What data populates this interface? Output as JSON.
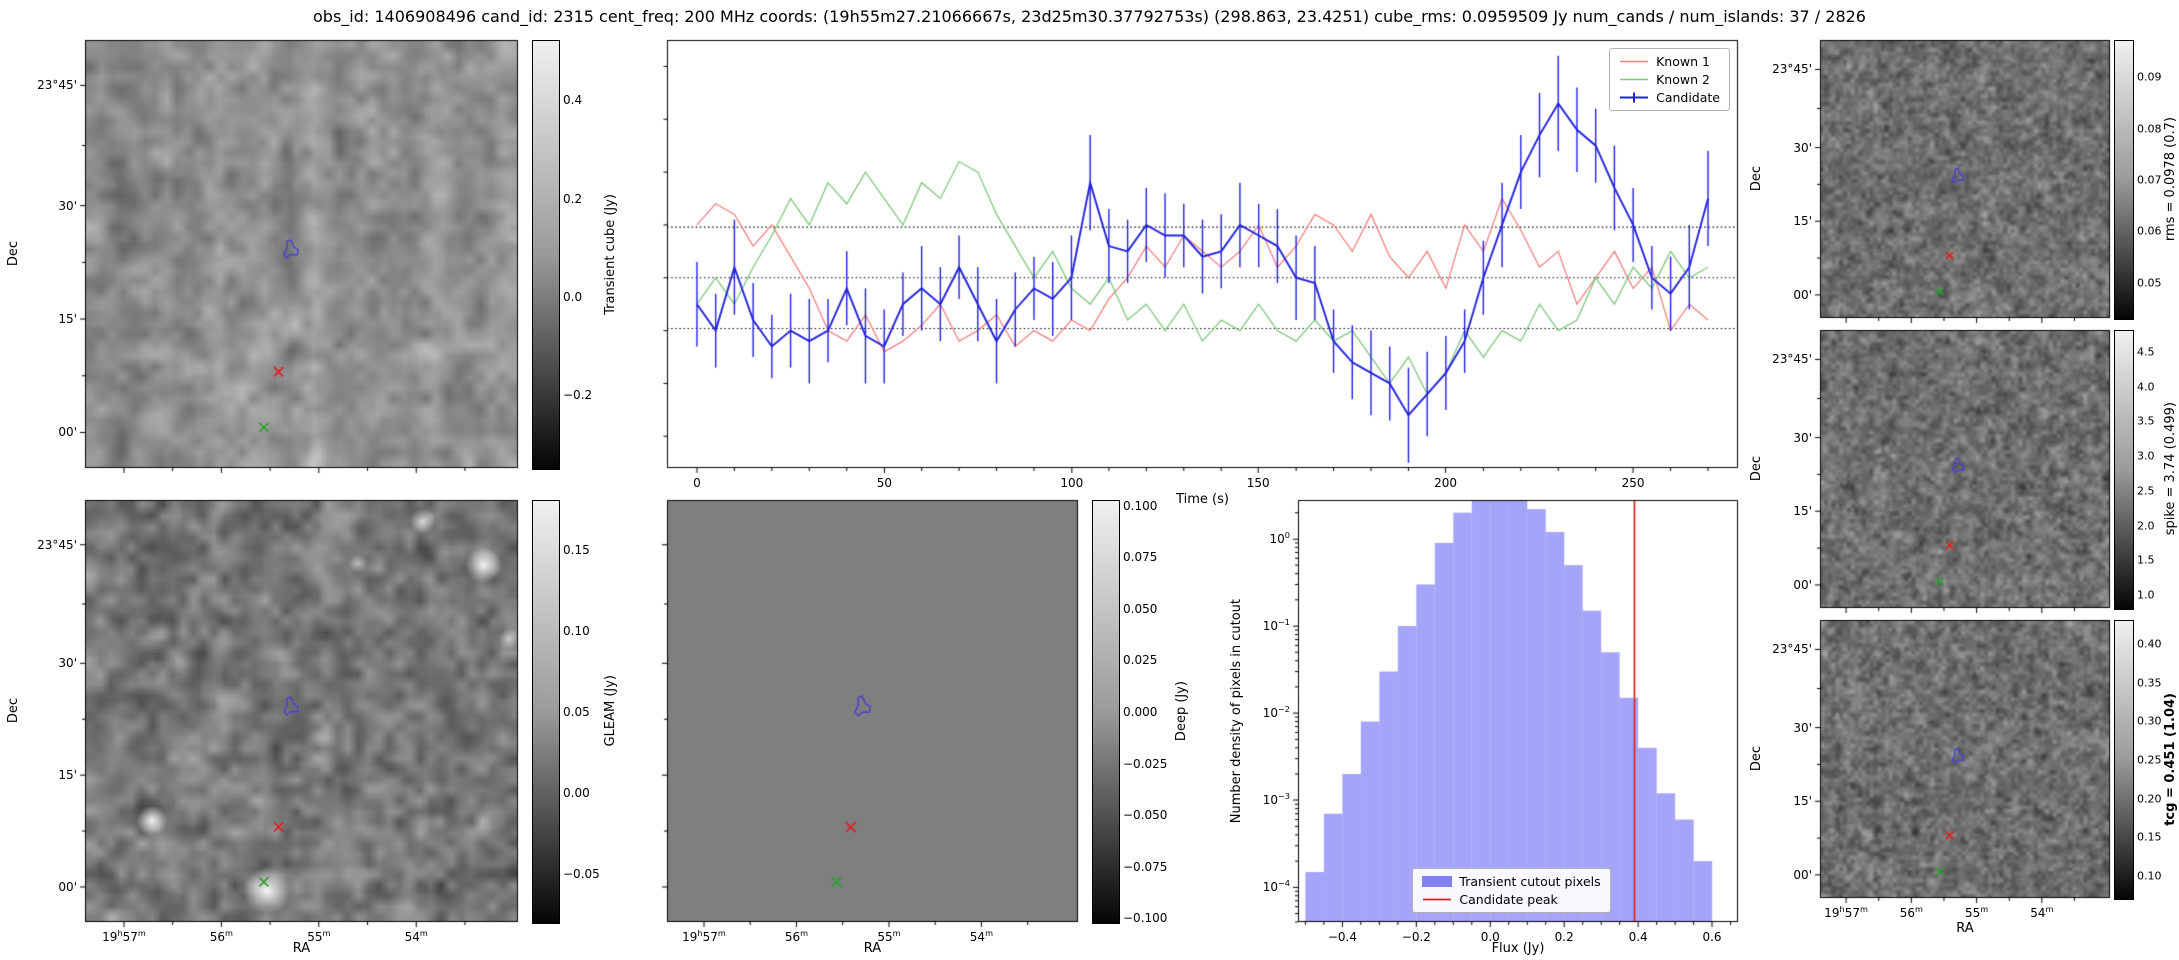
{
  "title": "obs_id: 1406908496 cand_id: 2315 cent_freq: 200 MHz coords: (19h55m27.21066667s, 23d25m30.37792753s) (298.863, 23.4251) cube_rms: 0.0959509 Jy num_cands / num_islands: 37 / 2826",
  "axis_labels": {
    "dec": "Dec",
    "ra": "RA"
  },
  "colors": {
    "known1": "#f08080",
    "known2": "#7ec77e",
    "candidate": "#2020dd",
    "hist_fill": "#8181f5",
    "candidate_peak": "#e02020",
    "marker_candidate": "#4d43cf",
    "marker_known1": "#e02020",
    "marker_known2": "#2ca02c"
  },
  "markers": {
    "candidate": {
      "shape": "contour",
      "color": "#4d43cf",
      "x": 0.475,
      "y": 0.49
    },
    "known1": {
      "shape": "x",
      "color": "#e02020",
      "x": 0.447,
      "y": 0.775
    },
    "known2": {
      "shape": "x",
      "color": "#2ca02c",
      "x": 0.413,
      "y": 0.905
    }
  },
  "ticks": {
    "dec": {
      "labels": [
        "23°45'",
        "30'",
        "15'",
        "00'"
      ],
      "pos": [
        0.106,
        0.387,
        0.652,
        0.917
      ]
    },
    "ra": {
      "labels": [
        "19h57m",
        "56m",
        "55m",
        "54m"
      ],
      "pos": [
        0.09,
        0.315,
        0.54,
        0.765
      ],
      "format": "ra"
    },
    "time": {
      "labels": [
        "0",
        "50",
        "100",
        "150",
        "200",
        "250"
      ],
      "pos": [
        0.028,
        0.203,
        0.378,
        0.552,
        0.727,
        0.902
      ]
    },
    "flux": {
      "labels": [
        "−0.4",
        "−0.2",
        "0.0",
        "0.2",
        "0.4",
        "0.6"
      ],
      "pos": [
        0.101,
        0.269,
        0.437,
        0.605,
        0.773,
        0.941
      ]
    },
    "logdensity": {
      "labels": [
        "0",
        "−1",
        "−2",
        "−3",
        "−4"
      ],
      "pos": [
        0.093,
        0.299,
        0.505,
        0.711,
        0.918
      ],
      "format": "log"
    },
    "cb_transient": {
      "labels": [
        "0.4",
        "0.2",
        "0.0",
        "−0.2"
      ],
      "pos": [
        0.138,
        0.368,
        0.598,
        0.828
      ]
    },
    "cb_gleam": {
      "labels": [
        "0.15",
        "0.10",
        "0.05",
        "0.00",
        "−0.05"
      ],
      "pos": [
        0.115,
        0.308,
        0.5,
        0.692,
        0.885
      ]
    },
    "cb_deep": {
      "labels": [
        "0.100",
        "0.075",
        "0.050",
        "0.025",
        "0.000",
        "−0.025",
        "−0.050",
        "−0.075",
        "−0.100"
      ],
      "pos": [
        0.012,
        0.132,
        0.255,
        0.377,
        0.5,
        0.623,
        0.745,
        0.868,
        0.988
      ]
    },
    "cb_rms": {
      "labels": [
        "0.09",
        "0.08",
        "0.07",
        "0.06",
        "0.05"
      ],
      "pos": [
        0.13,
        0.315,
        0.5,
        0.685,
        0.87
      ]
    },
    "cb_spike": {
      "labels": [
        "4.5",
        "4.0",
        "3.5",
        "3.0",
        "2.5",
        "2.0",
        "1.5",
        "1.0"
      ],
      "pos": [
        0.075,
        0.2,
        0.325,
        0.45,
        0.575,
        0.7,
        0.825,
        0.95
      ]
    },
    "cb_tcg": {
      "labels": [
        "0.40",
        "0.35",
        "0.30",
        "0.25",
        "0.20",
        "0.15",
        "0.10"
      ],
      "pos": [
        0.083,
        0.222,
        0.361,
        0.5,
        0.639,
        0.778,
        0.917
      ]
    }
  },
  "panels": {
    "transient_cube": {
      "colorbar_label": "Transient cube (Jy)",
      "colorbar_range": [
        -0.35,
        0.52
      ]
    },
    "gleam": {
      "colorbar_label": "GLEAM (Jy)",
      "colorbar_range": [
        -0.08,
        0.18
      ]
    },
    "deep": {
      "colorbar_label": "Deep (Jy)",
      "colorbar_range": [
        -0.102,
        0.102
      ]
    },
    "rms": {
      "colorbar_label": "rms = 0.0978 (0.7)",
      "colorbar_range": [
        0.043,
        0.097
      ]
    },
    "spike": {
      "colorbar_label": "spike = 3.74 (0.499)",
      "colorbar_range": [
        0.8,
        4.8
      ]
    },
    "tcg": {
      "colorbar_label": "tcg = 0.451 (1.04)",
      "colorbar_range": [
        0.07,
        0.43
      ],
      "bold": true
    }
  },
  "chart_data": [
    {
      "type": "line",
      "name": "lightcurves",
      "xlabel": "Time (s)",
      "ylabel": "",
      "xlim": [
        -8,
        278
      ],
      "ylim": [
        -0.36,
        0.45
      ],
      "legend_position": "upper right",
      "hlines": {
        "values": [
          0.0959509,
          0,
          -0.0959509
        ],
        "style": "dotted"
      },
      "x": [
        0,
        5,
        10,
        15,
        20,
        25,
        30,
        35,
        40,
        45,
        50,
        55,
        60,
        65,
        70,
        75,
        80,
        85,
        90,
        95,
        100,
        105,
        110,
        115,
        120,
        125,
        130,
        135,
        140,
        145,
        150,
        155,
        160,
        165,
        170,
        175,
        180,
        185,
        190,
        195,
        200,
        205,
        210,
        215,
        220,
        225,
        230,
        235,
        240,
        245,
        250,
        255,
        260,
        265,
        270
      ],
      "series": [
        {
          "name": "Known 1",
          "color": "#f08080",
          "values": [
            0.1,
            0.14,
            0.12,
            0.06,
            0.1,
            0.04,
            -0.02,
            -0.1,
            -0.12,
            -0.07,
            -0.14,
            -0.12,
            -0.09,
            -0.05,
            -0.12,
            -0.1,
            -0.07,
            -0.13,
            -0.1,
            -0.12,
            -0.08,
            -0.1,
            -0.04,
            0.0,
            0.06,
            0.02,
            0.08,
            0.05,
            0.02,
            0.05,
            0.1,
            0.02,
            0.06,
            0.12,
            0.1,
            0.05,
            0.12,
            0.04,
            0.0,
            0.05,
            -0.02,
            0.1,
            0.05,
            0.15,
            0.09,
            0.02,
            0.05,
            -0.05,
            0.0,
            0.05,
            -0.02,
            0.02,
            -0.1,
            -0.05,
            -0.08
          ]
        },
        {
          "name": "Known 2",
          "color": "#7ec77e",
          "values": [
            -0.05,
            0.0,
            -0.05,
            0.02,
            0.08,
            0.15,
            0.1,
            0.18,
            0.14,
            0.2,
            0.15,
            0.1,
            0.18,
            0.15,
            0.22,
            0.2,
            0.12,
            0.06,
            0.0,
            0.05,
            -0.02,
            -0.05,
            0.0,
            -0.08,
            -0.05,
            -0.1,
            -0.05,
            -0.12,
            -0.08,
            -0.1,
            -0.05,
            -0.1,
            -0.12,
            -0.08,
            -0.12,
            -0.1,
            -0.15,
            -0.2,
            -0.15,
            -0.22,
            -0.18,
            -0.1,
            -0.15,
            -0.1,
            -0.12,
            -0.05,
            -0.1,
            -0.08,
            0.0,
            -0.05,
            0.02,
            -0.02,
            0.05,
            0.0,
            0.02
          ]
        },
        {
          "name": "Candidate",
          "color": "#2020dd",
          "values": [
            -0.05,
            -0.1,
            0.02,
            -0.08,
            -0.13,
            -0.1,
            -0.12,
            -0.1,
            -0.02,
            -0.11,
            -0.13,
            -0.05,
            -0.02,
            -0.05,
            0.02,
            -0.05,
            -0.12,
            -0.06,
            -0.02,
            -0.04,
            0.0,
            0.18,
            0.06,
            0.05,
            0.1,
            0.08,
            0.08,
            0.04,
            0.05,
            0.1,
            0.08,
            0.06,
            0.0,
            -0.01,
            -0.12,
            -0.16,
            -0.18,
            -0.2,
            -0.26,
            -0.22,
            -0.18,
            -0.12,
            0.0,
            0.1,
            0.2,
            0.27,
            0.33,
            0.28,
            0.25,
            0.17,
            0.1,
            0.0,
            -0.03,
            0.02,
            0.15
          ],
          "yerr": [
            0.08,
            0.07,
            0.09,
            0.07,
            0.06,
            0.07,
            0.08,
            0.06,
            0.07,
            0.09,
            0.07,
            0.06,
            0.08,
            0.07,
            0.06,
            0.07,
            0.08,
            0.07,
            0.06,
            0.07,
            0.08,
            0.09,
            0.07,
            0.06,
            0.07,
            0.08,
            0.06,
            0.07,
            0.07,
            0.08,
            0.06,
            0.07,
            0.08,
            0.07,
            0.06,
            0.07,
            0.08,
            0.07,
            0.09,
            0.08,
            0.07,
            0.06,
            0.07,
            0.08,
            0.07,
            0.08,
            0.09,
            0.08,
            0.07,
            0.08,
            0.07,
            0.06,
            0.07,
            0.08,
            0.09
          ]
        }
      ]
    },
    {
      "type": "bar",
      "name": "flux-histogram",
      "xlabel": "Flux (Jy)",
      "ylabel": "Number density of pixels in cutout",
      "yscale": "log",
      "xlim": [
        -0.52,
        0.67
      ],
      "ylim": [
        4e-05,
        2.8
      ],
      "bin_start": -0.5,
      "bin_width": 0.05,
      "densities": [
        0.00015,
        0.0007,
        0.002,
        0.008,
        0.03,
        0.1,
        0.3,
        0.9,
        2.0,
        3.2,
        3.5,
        3.0,
        2.2,
        1.2,
        0.5,
        0.15,
        0.05,
        0.015,
        0.004,
        0.0012,
        0.0006,
        0.0002
      ],
      "candidate_peak_flux": 0.39,
      "legend": [
        "Transient cutout pixels",
        "Candidate peak"
      ],
      "legend_position": "lower center"
    },
    {
      "type": "heatmap",
      "name": "transient-cube-cutout",
      "colorbar_label": "Transient cube (Jy)",
      "colorbar_ticks": [
        0.4,
        0.2,
        0.0,
        -0.2
      ],
      "content": "correlated grayscale noise with candidate contour and known-source crosses"
    },
    {
      "type": "heatmap",
      "name": "gleam-cutout",
      "colorbar_label": "GLEAM (Jy)",
      "colorbar_ticks": [
        0.15,
        0.1,
        0.05,
        0.0,
        -0.05
      ],
      "content": "grayscale sky image with bright compact sources"
    },
    {
      "type": "heatmap",
      "name": "deep-cutout",
      "colorbar_label": "Deep (Jy)",
      "colorbar_ticks": [
        0.1,
        0.075,
        0.05,
        0.025,
        0.0,
        -0.025,
        -0.05,
        -0.075,
        -0.1
      ],
      "content": "flat mid-gray image with markers"
    },
    {
      "type": "heatmap",
      "name": "rms-cutout",
      "colorbar_label": "rms = 0.0978 (0.7)",
      "colorbar_ticks": [
        0.09,
        0.08,
        0.07,
        0.06,
        0.05
      ],
      "content": "fine grayscale noise"
    },
    {
      "type": "heatmap",
      "name": "spike-cutout",
      "colorbar_label": "spike = 3.74 (0.499)",
      "colorbar_ticks": [
        4.5,
        4.0,
        3.5,
        3.0,
        2.5,
        2.0,
        1.5,
        1.0
      ],
      "content": "fine grayscale noise"
    },
    {
      "type": "heatmap",
      "name": "tcg-cutout",
      "colorbar_label": "tcg = 0.451 (1.04)",
      "colorbar_ticks": [
        0.4,
        0.35,
        0.3,
        0.25,
        0.2,
        0.15,
        0.1
      ],
      "content": "fine grayscale noise"
    }
  ]
}
